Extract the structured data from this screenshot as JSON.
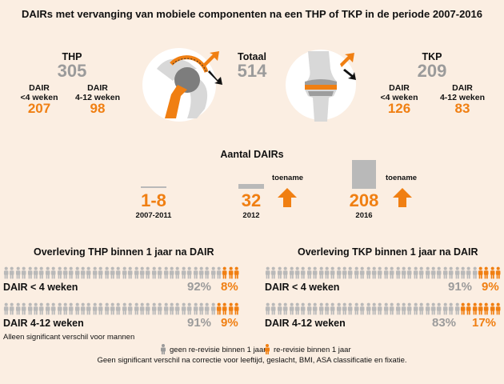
{
  "title": "DAIRs met vervanging van mobiele componenten na een THP of TKP in de periode 2007-2016",
  "thp": {
    "label": "THP",
    "value": "305",
    "sub1_label_line1": "DAIR",
    "sub1_label_line2": "<4 weken",
    "sub1_value": "207",
    "sub2_label_line1": "DAIR",
    "sub2_label_line2": "4-12 weken",
    "sub2_value": "98"
  },
  "totaal": {
    "label": "Totaal",
    "value": "514"
  },
  "tkp": {
    "label": "TKP",
    "value": "209",
    "sub1_label_line1": "DAIR",
    "sub1_label_line2": "<4 weken",
    "sub1_value": "126",
    "sub2_label_line1": "DAIR",
    "sub2_label_line2": "4-12 weken",
    "sub2_value": "83"
  },
  "aantal": {
    "title": "Aantal DAIRs",
    "items": [
      {
        "value": "1-8",
        "period": "2007-2011",
        "level": 8
      },
      {
        "value": "32",
        "period": "2012",
        "level": 32,
        "toename": "toename"
      },
      {
        "value": "208",
        "period": "2016",
        "level": 208,
        "toename": "toename"
      }
    ]
  },
  "overleving_thp": {
    "title": "Overleving THP binnen 1 jaar na DAIR",
    "rows": [
      {
        "label": "DAIR < 4 weken",
        "gray_pct": "92%",
        "orange_pct": "8%",
        "orange_share": 0.08
      },
      {
        "label": "DAIR 4-12 weken",
        "gray_pct": "91%",
        "orange_pct": "9%",
        "orange_share": 0.09
      }
    ],
    "note": "Alleen significant verschil voor mannen"
  },
  "overleving_tkp": {
    "title": "Overleving TKP binnen 1 jaar na DAIR",
    "rows": [
      {
        "label": "DAIR < 4 weken",
        "gray_pct": "91%",
        "orange_pct": "9%",
        "orange_share": 0.09
      },
      {
        "label": "DAIR 4-12 weken",
        "gray_pct": "83%",
        "orange_pct": "17%",
        "orange_share": 0.17
      }
    ]
  },
  "legend": {
    "gray_label": "geen re-revisie binnen 1 jaar",
    "orange_label": "re-revisie binnen 1 jaar",
    "footnote": "Geen significant verschil na correctie voor leeftijd, geslacht, BMI, ASA classificatie en fixatie."
  },
  "colors": {
    "orange": "#f07f12",
    "gray": "#9b9b9b",
    "light_gray": "#b9b9b9",
    "background": "#fbeee2"
  }
}
